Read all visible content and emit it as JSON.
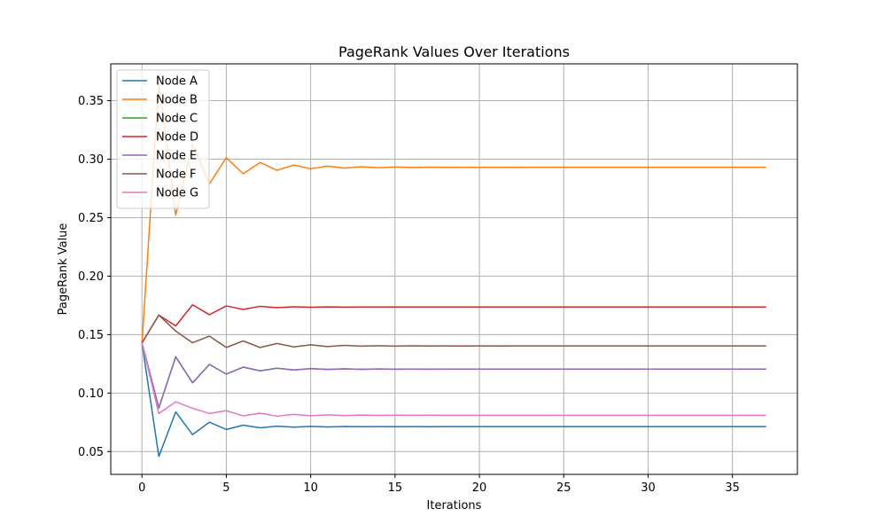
{
  "chart_data": {
    "type": "line",
    "title": "PageRank Values Over Iterations",
    "xlabel": "Iterations",
    "ylabel": "PageRank Value",
    "xlim": [
      -1.85,
      38.85
    ],
    "ylim": [
      0.0305,
      0.3815
    ],
    "xticks": [
      0,
      5,
      10,
      15,
      20,
      25,
      30,
      35
    ],
    "yticks": [
      0.05,
      0.1,
      0.15,
      0.2,
      0.25,
      0.3,
      0.35
    ],
    "ytick_labels": [
      "0.05",
      "0.10",
      "0.15",
      "0.20",
      "0.25",
      "0.30",
      "0.35"
    ],
    "grid": true,
    "legend_position": "upper-left",
    "x": [
      0,
      1,
      2,
      3,
      4,
      5,
      6,
      7,
      8,
      9,
      10,
      11,
      12,
      13,
      14,
      15,
      16,
      17,
      18,
      19,
      20,
      21,
      22,
      23,
      24,
      25,
      26,
      27,
      28,
      29,
      30,
      31,
      32,
      33,
      34,
      35,
      36,
      37
    ],
    "series": [
      {
        "name": "Node A",
        "color": "#1f77b4",
        "values": [
          0.1429,
          0.0458,
          0.0839,
          0.0645,
          0.0751,
          0.0689,
          0.0726,
          0.0703,
          0.0717,
          0.0709,
          0.0715,
          0.0711,
          0.0714,
          0.0712,
          0.0713,
          0.0712,
          0.0713,
          0.0712,
          0.0713,
          0.0713,
          0.0713,
          0.0713,
          0.0713,
          0.0713,
          0.0713,
          0.0713,
          0.0713,
          0.0713,
          0.0713,
          0.0713,
          0.0713,
          0.0713,
          0.0713,
          0.0713,
          0.0713,
          0.0713,
          0.0713,
          0.0713
        ]
      },
      {
        "name": "Node B",
        "color": "#ff7f0e",
        "values": [
          0.1429,
          0.3655,
          0.252,
          0.313,
          0.279,
          0.3012,
          0.2875,
          0.2972,
          0.2905,
          0.295,
          0.2918,
          0.294,
          0.2924,
          0.2935,
          0.2927,
          0.2933,
          0.2929,
          0.2932,
          0.293,
          0.2931,
          0.293,
          0.2931,
          0.293,
          0.2931,
          0.2931,
          0.2931,
          0.2931,
          0.2931,
          0.2931,
          0.2931,
          0.2931,
          0.2931,
          0.2931,
          0.2931,
          0.2931,
          0.2931,
          0.2931,
          0.2931
        ]
      },
      {
        "name": "Node C",
        "color": "#2ca02c",
        "values": [
          0.1429,
          0.0873,
          0.131,
          0.1088,
          0.1245,
          0.1162,
          0.1222,
          0.119,
          0.1213,
          0.1198,
          0.1209,
          0.1202,
          0.1207,
          0.1203,
          0.1206,
          0.1204,
          0.1205,
          0.1204,
          0.1205,
          0.1205,
          0.1205,
          0.1205,
          0.1205,
          0.1205,
          0.1205,
          0.1205,
          0.1205,
          0.1205,
          0.1205,
          0.1205,
          0.1205,
          0.1205,
          0.1205,
          0.1205,
          0.1205,
          0.1205,
          0.1205,
          0.1205
        ]
      },
      {
        "name": "Node D",
        "color": "#d62728",
        "values": [
          0.1429,
          0.1667,
          0.1575,
          0.1755,
          0.167,
          0.1745,
          0.1715,
          0.1742,
          0.173,
          0.1738,
          0.1734,
          0.1737,
          0.1735,
          0.1736,
          0.1736,
          0.1736,
          0.1736,
          0.1736,
          0.1736,
          0.1736,
          0.1736,
          0.1736,
          0.1736,
          0.1736,
          0.1736,
          0.1736,
          0.1736,
          0.1736,
          0.1736,
          0.1736,
          0.1736,
          0.1736,
          0.1736,
          0.1736,
          0.1736,
          0.1736,
          0.1736,
          0.1736
        ]
      },
      {
        "name": "Node E",
        "color": "#9467bd",
        "values": [
          0.1429,
          0.0873,
          0.131,
          0.1088,
          0.1245,
          0.1162,
          0.1222,
          0.119,
          0.1213,
          0.1198,
          0.1209,
          0.1202,
          0.1207,
          0.1203,
          0.1206,
          0.1204,
          0.1205,
          0.1204,
          0.1205,
          0.1205,
          0.1205,
          0.1205,
          0.1205,
          0.1205,
          0.1205,
          0.1205,
          0.1205,
          0.1205,
          0.1205,
          0.1205,
          0.1205,
          0.1205,
          0.1205,
          0.1205,
          0.1205,
          0.1205,
          0.1205,
          0.1205
        ]
      },
      {
        "name": "Node F",
        "color": "#8c564b",
        "values": [
          0.1429,
          0.1667,
          0.153,
          0.143,
          0.1487,
          0.139,
          0.1446,
          0.139,
          0.1424,
          0.1395,
          0.1413,
          0.1398,
          0.1408,
          0.1401,
          0.1405,
          0.1401,
          0.1404,
          0.1402,
          0.1403,
          0.1402,
          0.1403,
          0.1402,
          0.1403,
          0.1403,
          0.1403,
          0.1403,
          0.1403,
          0.1403,
          0.1403,
          0.1403,
          0.1403,
          0.1403,
          0.1403,
          0.1403,
          0.1403,
          0.1403,
          0.1403,
          0.1403
        ]
      },
      {
        "name": "Node G",
        "color": "#e377c2",
        "values": [
          0.1429,
          0.0825,
          0.0925,
          0.087,
          0.0825,
          0.085,
          0.0805,
          0.0828,
          0.0803,
          0.0818,
          0.0806,
          0.0814,
          0.0808,
          0.0812,
          0.0809,
          0.0811,
          0.081,
          0.0811,
          0.081,
          0.081,
          0.081,
          0.081,
          0.081,
          0.081,
          0.081,
          0.081,
          0.081,
          0.081,
          0.081,
          0.081,
          0.081,
          0.081,
          0.081,
          0.081,
          0.081,
          0.081,
          0.081,
          0.081
        ]
      }
    ]
  }
}
